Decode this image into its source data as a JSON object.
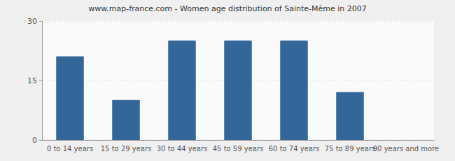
{
  "chart_data": {
    "type": "bar",
    "title": "www.map-france.com - Women age distribution of Sainte-Même in 2007",
    "categories": [
      "0 to 14 years",
      "15 to 29 years",
      "30 to 44 years",
      "45 to 59 years",
      "60 to 74 years",
      "75 to 89 years",
      "90 years and more"
    ],
    "values": [
      21,
      10,
      25,
      25,
      25,
      12,
      0
    ],
    "color": "#336699",
    "ylim": [
      0,
      30
    ],
    "yticks": [
      0,
      15,
      30
    ],
    "grid": true
  }
}
